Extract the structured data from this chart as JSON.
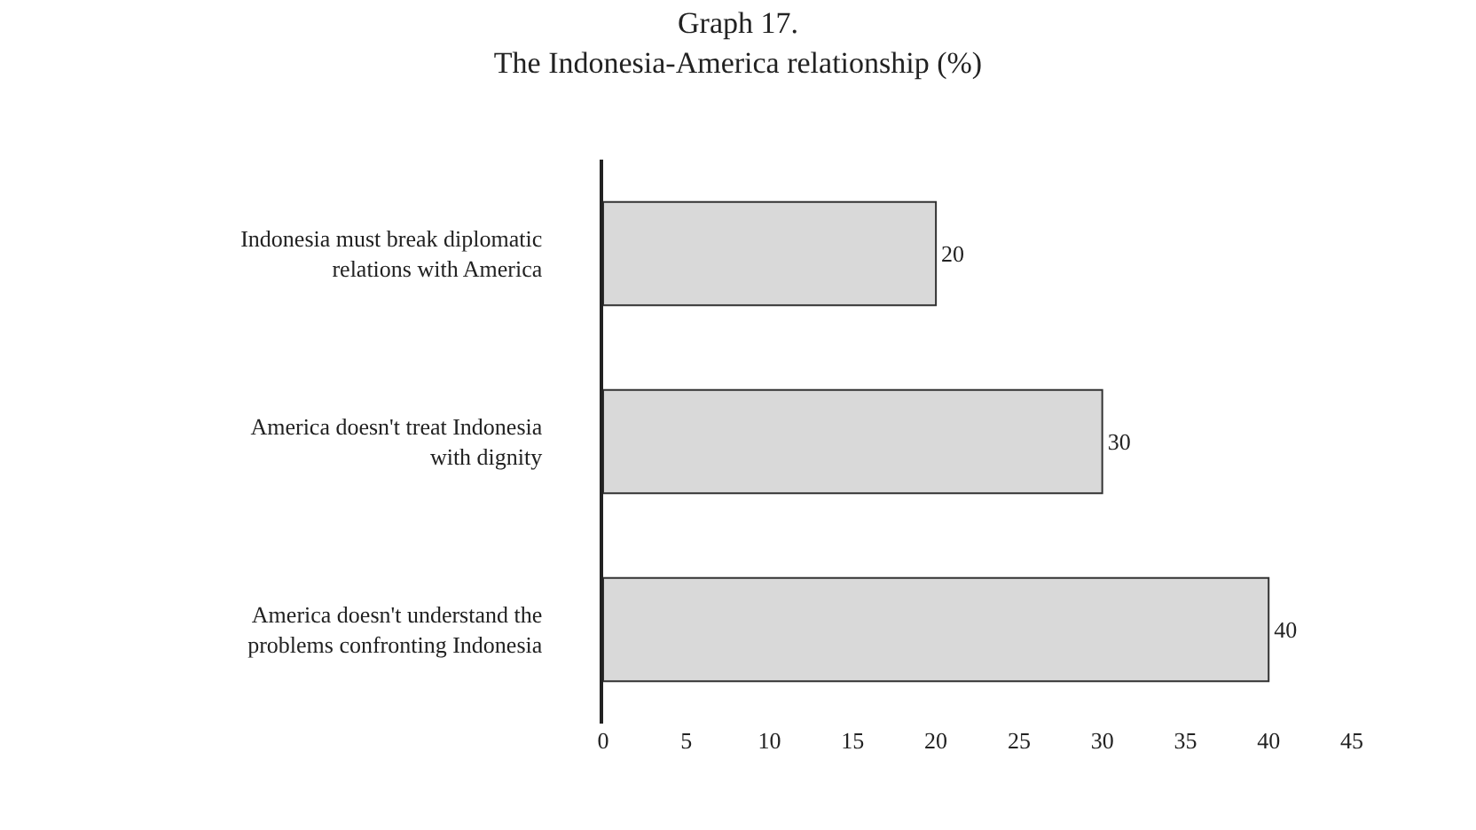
{
  "chart_data": {
    "type": "bar",
    "orientation": "horizontal",
    "title": "Graph 17.",
    "subtitle": "The Indonesia-America relationship (%)",
    "categories": [
      "Indonesia must break diplomatic relations with America",
      "America doesn't treat Indonesia with dignity",
      "America doesn't understand the problems confronting Indonesia"
    ],
    "values": [
      20,
      30,
      40
    ],
    "color": "#d9d9d9",
    "xlim": [
      0,
      45
    ],
    "xticks": [
      0,
      5,
      10,
      15,
      20,
      25,
      30,
      35,
      40,
      45
    ],
    "data_labels": true
  }
}
